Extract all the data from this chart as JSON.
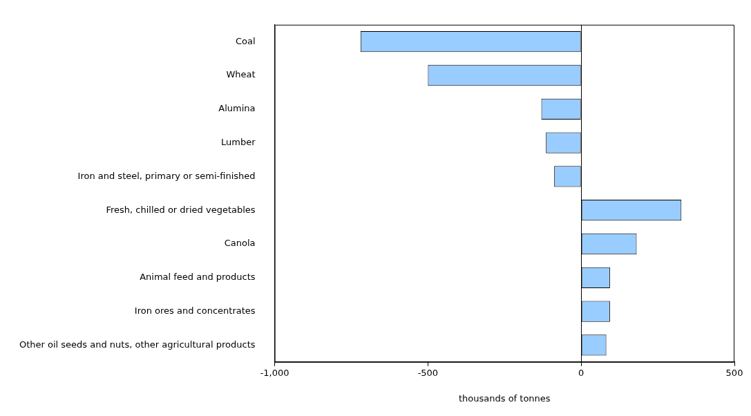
{
  "chart_data": {
    "type": "bar",
    "orientation": "horizontal",
    "xlabel": "thousands of tonnes",
    "categories": [
      "Coal",
      "Wheat",
      "Alumina",
      "Lumber",
      "Iron and steel, primary or semi-finished",
      "Fresh, chilled or dried vegetables",
      "Canola",
      "Animal feed and products",
      "Iron ores and concentrates",
      "Other oil seeds and nuts, other agricultural products"
    ],
    "values": [
      -720,
      -500,
      -130,
      -115,
      -88,
      327,
      181,
      94,
      94,
      82
    ],
    "color": "#99ccff",
    "xlim": [
      -1000,
      500
    ],
    "xticks": [
      {
        "value": -1000,
        "label": "-1,000"
      },
      {
        "value": -500,
        "label": "-500"
      },
      0,
      500
    ],
    "ref_lines": [
      {
        "axis": "x",
        "value": 0,
        "color": "#000000"
      }
    ],
    "legend": false
  }
}
